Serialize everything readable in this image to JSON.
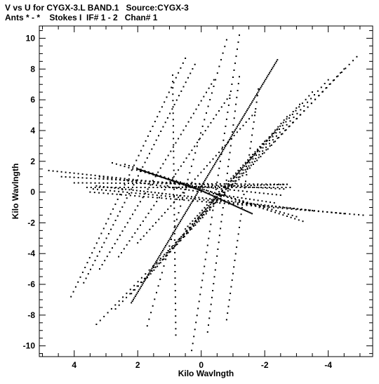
{
  "header": {
    "line1": "V vs U for CYGX-3.L BAND.1   Source:CYGX-3",
    "line2": "Ants * - *    Stokes I  IF# 1 - 2   Chan# 1"
  },
  "chart_data": {
    "type": "scatter",
    "title": "V vs U for CYGX-3.L BAND.1   Source:CYGX-3",
    "subtitle": "Ants * - *    Stokes I  IF# 1 - 2   Chan# 1",
    "xlabel": "Kilo Wavlngth",
    "ylabel": "Kilo Wavlngth",
    "xlim": [
      5.1,
      -5.4
    ],
    "ylim": [
      -10.7,
      10.8
    ],
    "x_reversed": true,
    "xticks": [
      4,
      2,
      0,
      -2,
      -4
    ],
    "xtick_labels": [
      "4",
      "2",
      "0",
      "-2",
      "-4"
    ],
    "yticks": [
      10,
      8,
      6,
      4,
      2,
      0,
      -2,
      -4,
      -6,
      -8,
      -10
    ],
    "ytick_labels": [
      "10",
      "8",
      "6",
      "4",
      "2",
      "0",
      "-2",
      "-4",
      "-6",
      "-8",
      "-10"
    ],
    "grid": false,
    "marker_color": "#000000",
    "tracks": [
      {
        "u0": 2.2,
        "v0": -7.2,
        "u1": -2.4,
        "v1": 8.6,
        "n": 150
      },
      {
        "u0": 3.3,
        "v0": -8.6,
        "u1": -4.9,
        "v1": 8.8,
        "n": 70
      },
      {
        "u0": 2.7,
        "v0": -7.6,
        "u1": -4.5,
        "v1": 8.0,
        "n": 64
      },
      {
        "u0": 2.2,
        "v0": -6.6,
        "u1": -4.0,
        "v1": 7.3,
        "n": 58
      },
      {
        "u0": 1.8,
        "v0": -5.8,
        "u1": -3.5,
        "v1": 6.5,
        "n": 52
      },
      {
        "u0": 1.5,
        "v0": -4.9,
        "u1": -3.1,
        "v1": 5.7,
        "n": 46
      },
      {
        "u0": 1.1,
        "v0": -4.1,
        "u1": -2.7,
        "v1": 4.9,
        "n": 42
      },
      {
        "u0": 0.8,
        "v0": -3.3,
        "u1": -2.4,
        "v1": 4.1,
        "n": 38
      },
      {
        "u0": 0.5,
        "v0": -2.4,
        "u1": -2.0,
        "v1": 3.3,
        "n": 34
      },
      {
        "u0": 2.0,
        "v0": -3.3,
        "u1": -1.7,
        "v1": 5.2,
        "n": 40
      },
      {
        "u0": 2.6,
        "v0": -4.2,
        "u1": -0.9,
        "v1": 6.3,
        "n": 42
      },
      {
        "u0": 3.2,
        "v0": -5.0,
        "u1": -0.4,
        "v1": 7.3,
        "n": 46
      },
      {
        "u0": 3.7,
        "v0": -5.9,
        "u1": 0.2,
        "v1": 8.3,
        "n": 50
      },
      {
        "u0": 4.1,
        "v0": -6.8,
        "u1": 0.5,
        "v1": 8.7,
        "n": 50
      },
      {
        "u0": 0.8,
        "v0": -9.3,
        "u1": 0.9,
        "v1": 7.6,
        "n": 42
      },
      {
        "u0": 0.3,
        "v0": -10.3,
        "u1": -1.2,
        "v1": 10.2,
        "n": 46
      },
      {
        "u0": 1.7,
        "v0": -8.7,
        "u1": -0.8,
        "v1": 9.9,
        "n": 44
      },
      {
        "u0": -0.2,
        "v0": -9.1,
        "u1": -1.2,
        "v1": 7.5,
        "n": 38
      },
      {
        "u0": -0.8,
        "v0": -8.3,
        "u1": -1.8,
        "v1": 6.7,
        "n": 36
      },
      {
        "u0": 3.3,
        "v0": 0.4,
        "u1": -3.5,
        "v1": -1.2,
        "n": 60
      },
      {
        "u0": 3.4,
        "v0": 0.2,
        "u1": -4.5,
        "v1": -1.4,
        "n": 60
      },
      {
        "u0": 3.5,
        "v0": 0.0,
        "u1": -5.1,
        "v1": -1.5,
        "n": 62
      },
      {
        "u0": 4.8,
        "v0": 1.4,
        "u1": -2.5,
        "v1": -0.2,
        "n": 56
      },
      {
        "u0": 4.4,
        "v0": 1.0,
        "u1": -2.6,
        "v1": 0.2,
        "n": 54
      },
      {
        "u0": 4.0,
        "v0": 0.6,
        "u1": -2.7,
        "v1": 0.5,
        "n": 52
      },
      {
        "u0": 3.6,
        "v0": 0.3,
        "u1": -2.8,
        "v1": 0.3,
        "n": 50
      },
      {
        "u0": 3.2,
        "v0": 1.0,
        "u1": -2.3,
        "v1": -0.7,
        "n": 44
      },
      {
        "u0": 2.8,
        "v0": 1.9,
        "u1": -3.0,
        "v1": -1.6,
        "n": 46
      },
      {
        "u0": 2.4,
        "v0": 1.8,
        "u1": -3.2,
        "v1": -1.9,
        "n": 46
      },
      {
        "u0": 2.0,
        "v0": 1.5,
        "u1": 0.0,
        "v1": 0.1,
        "n": 60
      },
      {
        "u0": 0.0,
        "v0": 0.1,
        "u1": -1.6,
        "v1": -1.4,
        "n": 40
      },
      {
        "u0": 0.9,
        "v0": 0.3,
        "u1": -2.7,
        "v1": 0.5,
        "n": 36
      }
    ]
  }
}
